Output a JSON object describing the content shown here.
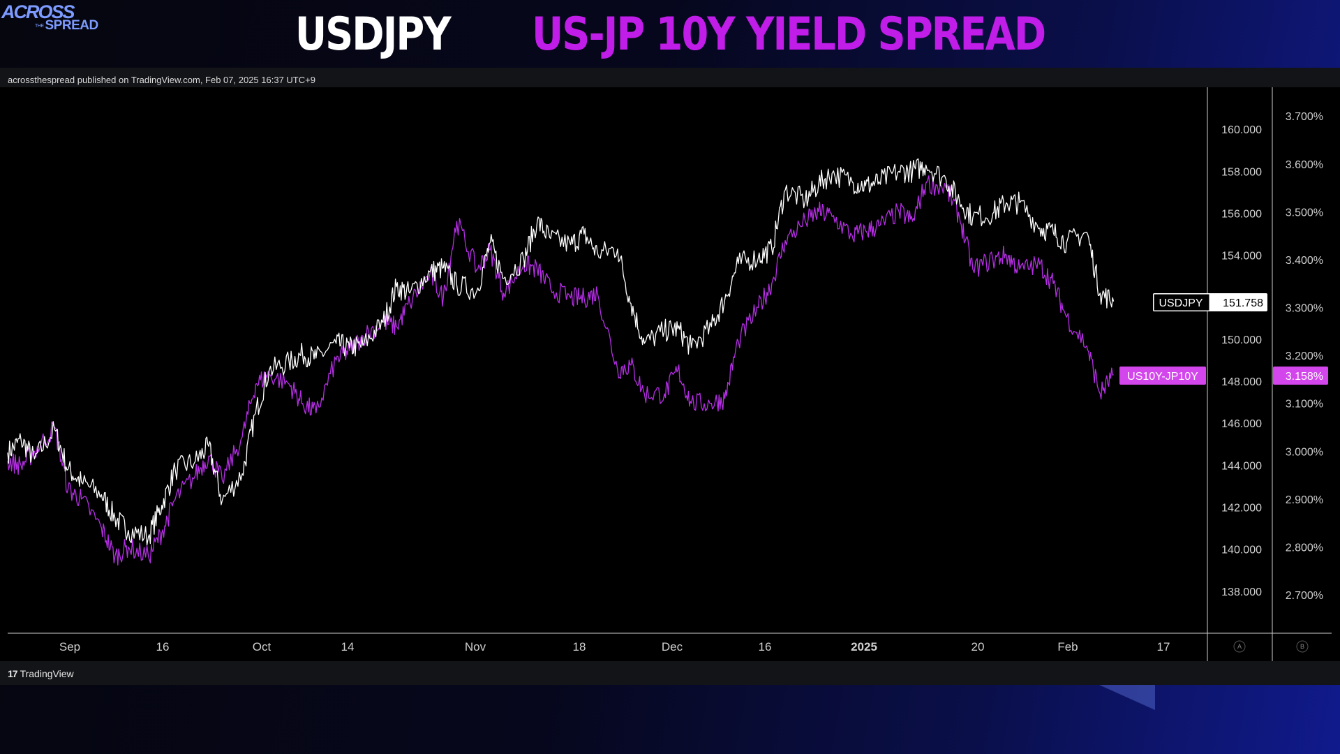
{
  "brand": {
    "logo_line1": "ACROSS",
    "logo_small": "THE",
    "logo_line2": "SPREAD"
  },
  "headline": {
    "left": "USDJPY",
    "right": "US-JP 10Y YIELD SPREAD"
  },
  "publisher_line": "acrossthespread published on TradingView.com, Feb 07, 2025 16:37 UTC+9",
  "footer": {
    "tv_mark": "17",
    "tv_name": "TradingView"
  },
  "colors": {
    "usdjpy": "#ffffff",
    "spread": "#b62ee6",
    "spread_label_bg": "#d246ec",
    "axis_line": "#cfcfcf"
  },
  "chart_data": {
    "type": "line",
    "x_ticks": [
      "Sep",
      "16",
      "Oct",
      "14",
      "Nov",
      "18",
      "Dec",
      "16",
      "2025",
      "20",
      "Feb",
      "17"
    ],
    "y_left_ticks": [
      "160.000",
      "158.000",
      "156.000",
      "154.000",
      "152.000",
      "150.000",
      "148.000",
      "146.000",
      "144.000",
      "142.000",
      "140.000",
      "138.000"
    ],
    "y_right_ticks": [
      "3.700%",
      "3.600%",
      "3.500%",
      "3.400%",
      "3.300%",
      "3.200%",
      "3.100%",
      "3.000%",
      "2.900%",
      "2.800%",
      "2.700%"
    ],
    "scale_buttons": [
      "A",
      "B"
    ],
    "ylim_left": [
      136.0,
      162.0
    ],
    "ylim_right": [
      2.62,
      3.76
    ],
    "series": [
      {
        "name": "USDJPY",
        "axis": "left",
        "last_value": "151.758",
        "x": [
          "2024-08-26",
          "2024-08-28",
          "2024-08-30",
          "2024-09-02",
          "2024-09-04",
          "2024-09-06",
          "2024-09-09",
          "2024-09-11",
          "2024-09-13",
          "2024-09-16",
          "2024-09-18",
          "2024-09-20",
          "2024-09-23",
          "2024-09-25",
          "2024-09-27",
          "2024-09-30",
          "2024-10-02",
          "2024-10-04",
          "2024-10-07",
          "2024-10-09",
          "2024-10-11",
          "2024-10-14",
          "2024-10-16",
          "2024-10-18",
          "2024-10-21",
          "2024-10-23",
          "2024-10-25",
          "2024-10-28",
          "2024-10-30",
          "2024-11-01",
          "2024-11-04",
          "2024-11-06",
          "2024-11-08",
          "2024-11-11",
          "2024-11-13",
          "2024-11-15",
          "2024-11-18",
          "2024-11-20",
          "2024-11-22",
          "2024-11-25",
          "2024-11-27",
          "2024-11-29",
          "2024-12-02",
          "2024-12-04",
          "2024-12-06",
          "2024-12-09",
          "2024-12-11",
          "2024-12-13",
          "2024-12-16",
          "2024-12-18",
          "2024-12-20",
          "2024-12-23",
          "2024-12-25",
          "2024-12-27",
          "2024-12-30",
          "2025-01-01",
          "2025-01-03",
          "2025-01-06",
          "2025-01-08",
          "2025-01-10",
          "2025-01-13",
          "2025-01-15",
          "2025-01-17",
          "2025-01-20",
          "2025-01-22",
          "2025-01-24",
          "2025-01-27",
          "2025-01-29",
          "2025-01-31",
          "2025-02-03",
          "2025-02-05",
          "2025-02-07"
        ],
        "y": [
          144.6,
          145.2,
          144.3,
          145.7,
          143.8,
          143.2,
          142.6,
          141.5,
          140.9,
          140.6,
          142.1,
          143.8,
          144.2,
          144.9,
          142.3,
          143.6,
          146.5,
          148.5,
          148.9,
          149.3,
          149.1,
          149.8,
          149.6,
          149.7,
          150.8,
          152.5,
          152.2,
          153.2,
          153.4,
          152.6,
          152.3,
          154.6,
          152.9,
          153.8,
          155.6,
          154.8,
          154.5,
          155.0,
          154.1,
          154.3,
          151.7,
          149.8,
          150.4,
          150.5,
          149.6,
          150.6,
          151.9,
          153.6,
          153.9,
          154.3,
          157.1,
          156.6,
          157.4,
          157.9,
          157.5,
          157.3,
          157.5,
          158.0,
          158.0,
          158.3,
          157.6,
          156.6,
          155.8,
          156.0,
          156.5,
          156.5,
          155.3,
          155.1,
          154.6,
          155.1,
          152.2,
          151.8
        ]
      },
      {
        "name": "US10Y-JP10Y",
        "axis": "right",
        "last_value": "3.158%",
        "x": [
          "2024-08-26",
          "2024-08-28",
          "2024-08-30",
          "2024-09-02",
          "2024-09-04",
          "2024-09-06",
          "2024-09-09",
          "2024-09-11",
          "2024-09-13",
          "2024-09-16",
          "2024-09-18",
          "2024-09-20",
          "2024-09-23",
          "2024-09-25",
          "2024-09-27",
          "2024-09-30",
          "2024-10-02",
          "2024-10-04",
          "2024-10-07",
          "2024-10-09",
          "2024-10-11",
          "2024-10-14",
          "2024-10-16",
          "2024-10-18",
          "2024-10-21",
          "2024-10-23",
          "2024-10-25",
          "2024-10-28",
          "2024-10-30",
          "2024-11-01",
          "2024-11-04",
          "2024-11-06",
          "2024-11-08",
          "2024-11-11",
          "2024-11-13",
          "2024-11-15",
          "2024-11-18",
          "2024-11-20",
          "2024-11-22",
          "2024-11-25",
          "2024-11-27",
          "2024-11-29",
          "2024-12-02",
          "2024-12-04",
          "2024-12-06",
          "2024-12-09",
          "2024-12-11",
          "2024-12-13",
          "2024-12-16",
          "2024-12-18",
          "2024-12-20",
          "2024-12-23",
          "2024-12-25",
          "2024-12-27",
          "2024-12-30",
          "2025-01-01",
          "2025-01-03",
          "2025-01-06",
          "2025-01-08",
          "2025-01-10",
          "2025-01-13",
          "2025-01-15",
          "2025-01-17",
          "2025-01-20",
          "2025-01-22",
          "2025-01-24",
          "2025-01-27",
          "2025-01-29",
          "2025-01-31",
          "2025-02-03",
          "2025-02-05",
          "2025-02-07"
        ],
        "y": [
          2.98,
          2.97,
          3.0,
          3.05,
          2.92,
          2.9,
          2.84,
          2.78,
          2.8,
          2.78,
          2.83,
          2.9,
          2.95,
          2.99,
          2.94,
          3.03,
          3.14,
          3.16,
          3.14,
          3.1,
          3.08,
          3.19,
          3.21,
          3.24,
          3.27,
          3.26,
          3.31,
          3.37,
          3.32,
          3.48,
          3.38,
          3.42,
          3.33,
          3.39,
          3.38,
          3.34,
          3.32,
          3.32,
          3.33,
          3.17,
          3.18,
          3.12,
          3.12,
          3.17,
          3.1,
          3.1,
          3.11,
          3.23,
          3.3,
          3.35,
          3.44,
          3.48,
          3.5,
          3.49,
          3.45,
          3.46,
          3.47,
          3.5,
          3.48,
          3.56,
          3.55,
          3.49,
          3.38,
          3.4,
          3.41,
          3.38,
          3.39,
          3.35,
          3.28,
          3.22,
          3.12,
          3.16
        ]
      }
    ]
  }
}
